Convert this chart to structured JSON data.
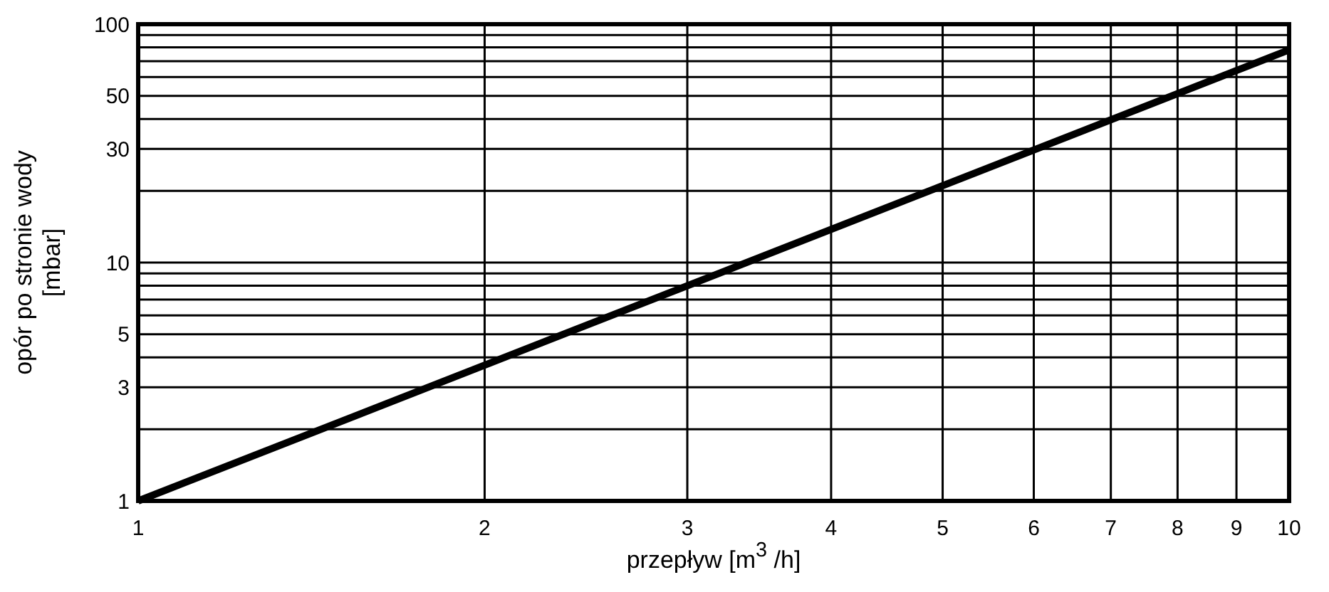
{
  "chart_data": {
    "type": "line",
    "xlabel": "przepływ [m$^{3}$ /h]",
    "ylabel": "opór po stronie wody\n[mbar]",
    "log": "xy",
    "grid": true,
    "marker": "none",
    "line_style": "solid",
    "x": [
      1,
      10
    ],
    "series": [
      {
        "color": "#000000",
        "values": [
          1,
          78
        ]
      }
    ],
    "xlim": [
      1,
      10
    ],
    "xticks": [
      1,
      2,
      3,
      4,
      5,
      6,
      7,
      8,
      9,
      10
    ],
    "ylim": [
      1,
      100
    ],
    "yticks": [
      1,
      {
        "value": 2,
        "label": null
      },
      3,
      {
        "value": 4,
        "label": null
      },
      5,
      {
        "value": 6,
        "label": null
      },
      {
        "value": 7,
        "label": null
      },
      {
        "value": 8,
        "label": null
      },
      {
        "value": 9,
        "label": null
      },
      10,
      {
        "value": 20,
        "label": null
      },
      30,
      {
        "value": 40,
        "label": null
      },
      50,
      {
        "value": 60,
        "label": null
      },
      {
        "value": 70,
        "label": null
      },
      {
        "value": 80,
        "label": null
      },
      {
        "value": 90,
        "label": null
      },
      100
    ]
  }
}
